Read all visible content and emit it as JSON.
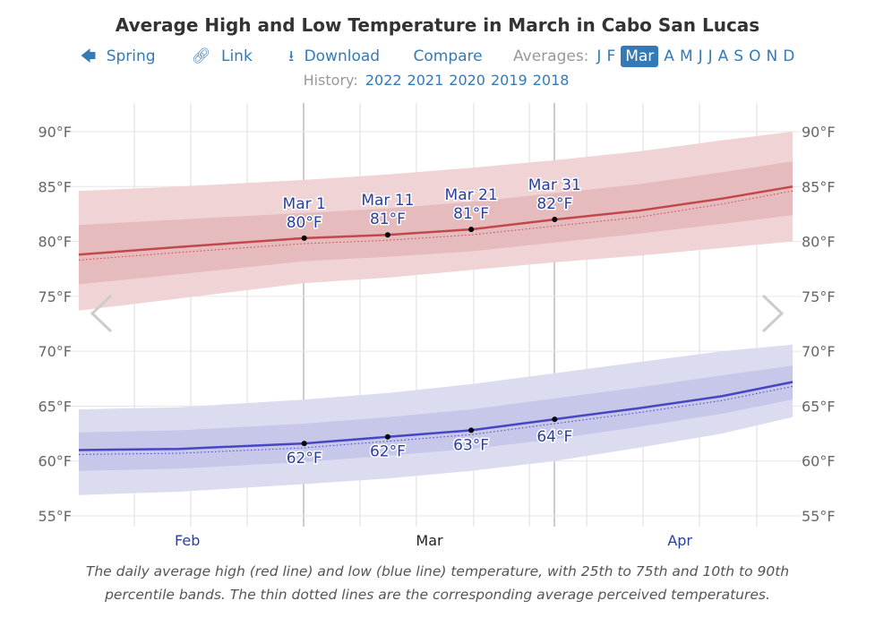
{
  "header": {
    "title": "Average High and Low Temperature in March in Cabo San Lucas",
    "nav": {
      "back": "Spring",
      "link": "Link",
      "download": "Download",
      "compare": "Compare",
      "averages_label": "Averages:",
      "months": [
        "J",
        "F",
        "Mar",
        "A",
        "M",
        "J",
        "J",
        "A",
        "S",
        "O",
        "N",
        "D"
      ],
      "selected_month": "Mar"
    },
    "history_label": "History:",
    "history_years": [
      "2022",
      "2021",
      "2020",
      "2019",
      "2018"
    ]
  },
  "icons": {
    "back": "arrow-left-icon",
    "link": "link-icon",
    "download": "download-icon",
    "prev": "chevron-left-icon",
    "next": "chevron-right-icon"
  },
  "chart_data": {
    "type": "line",
    "title": "Average High and Low Temperature in March in Cabo San Lucas",
    "x_unit": "day of year",
    "xlim": [
      33,
      118.5
    ],
    "ylim": [
      55,
      90
    ],
    "y_ticks": [
      "55°F",
      "60°F",
      "65°F",
      "70°F",
      "75°F",
      "80°F",
      "85°F",
      "90°F"
    ],
    "x_ticks": [
      {
        "label": "Feb",
        "day": 46
      },
      {
        "label": "Mar",
        "day": 75
      },
      {
        "label": "Apr",
        "day": 105
      }
    ],
    "grid": true,
    "colors": {
      "high": "#c0474a",
      "high_band_inner": "#e3b3b5",
      "high_band_outer": "#f0d3d4",
      "low": "#4646c0",
      "low_band_inner": "#c0c0e6",
      "low_band_outer": "#dcdcf1"
    },
    "x": [
      33,
      45,
      60,
      70,
      80,
      90,
      100,
      110,
      118.5
    ],
    "series": [
      {
        "key": "high",
        "values": [
          78.8,
          79.5,
          80.3,
          80.6,
          81.1,
          82.0,
          82.8,
          83.9,
          85.0
        ],
        "p10": [
          73.7,
          74.8,
          76.2,
          76.7,
          77.4,
          78.1,
          78.7,
          79.4,
          80.0
        ],
        "p25": [
          76.1,
          77.0,
          78.2,
          78.6,
          79.1,
          79.9,
          80.7,
          81.6,
          82.4
        ],
        "p75": [
          81.5,
          82.0,
          82.6,
          83.0,
          83.6,
          84.4,
          85.2,
          86.3,
          87.3
        ],
        "p90": [
          84.6,
          85.0,
          85.6,
          86.1,
          86.7,
          87.4,
          88.2,
          89.2,
          90.0
        ],
        "feels": [
          78.3,
          79.0,
          79.8,
          80.1,
          80.6,
          81.4,
          82.2,
          83.4,
          84.6
        ]
      },
      {
        "key": "low",
        "values": [
          61.0,
          61.1,
          61.6,
          62.2,
          62.8,
          63.8,
          64.8,
          65.9,
          67.2
        ],
        "p10": [
          56.9,
          57.2,
          57.9,
          58.4,
          59.1,
          60.0,
          61.2,
          62.5,
          64.0
        ],
        "p25": [
          59.1,
          59.3,
          59.9,
          60.5,
          61.1,
          62.0,
          63.1,
          64.3,
          65.6
        ],
        "p75": [
          62.6,
          62.8,
          63.4,
          64.0,
          64.7,
          65.7,
          66.7,
          67.8,
          68.7
        ],
        "p90": [
          64.7,
          64.9,
          65.6,
          66.2,
          67.0,
          68.0,
          69.0,
          70.0,
          70.6
        ],
        "feels": [
          60.6,
          60.7,
          61.2,
          61.8,
          62.4,
          63.4,
          64.4,
          65.5,
          66.8
        ]
      }
    ],
    "markers": [
      {
        "series": "high",
        "day": 60,
        "value": 80.3,
        "date": "Mar 1",
        "label": "80°F"
      },
      {
        "series": "high",
        "day": 70,
        "value": 80.6,
        "date": "Mar 11",
        "label": "81°F"
      },
      {
        "series": "high",
        "day": 80,
        "value": 81.1,
        "date": "Mar 21",
        "label": "81°F"
      },
      {
        "series": "high",
        "day": 90,
        "value": 82.0,
        "date": "Mar 31",
        "label": "82°F"
      },
      {
        "series": "low",
        "day": 60,
        "value": 61.6,
        "label": "62°F"
      },
      {
        "series": "low",
        "day": 70,
        "value": 62.2,
        "label": "62°F"
      },
      {
        "series": "low",
        "day": 80,
        "value": 62.8,
        "label": "63°F"
      },
      {
        "series": "low",
        "day": 90,
        "value": 63.8,
        "label": "64°F"
      }
    ]
  },
  "caption": "The daily average high (red line) and low (blue line) temperature, with 25th to 75th and 10th to 90th percentile bands. The thin dotted lines are the corresponding average perceived temperatures."
}
